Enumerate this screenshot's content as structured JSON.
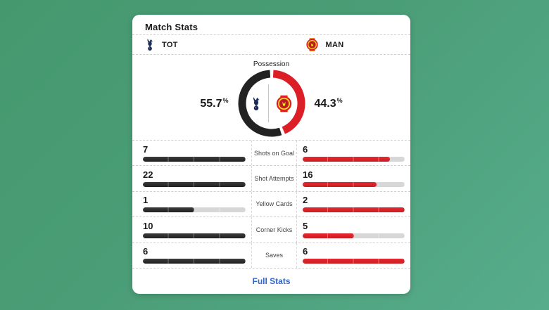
{
  "header": {
    "title": "Match Stats"
  },
  "teams": {
    "home": {
      "abbr": "TOT",
      "name": "Tottenham"
    },
    "away": {
      "abbr": "MAN",
      "name": "Manchester United"
    }
  },
  "possession": {
    "title": "Possession",
    "home_value": "55.7",
    "away_value": "44.3",
    "unit": "%"
  },
  "chart_data": [
    {
      "type": "pie",
      "title": "Possession",
      "legend_position": "inside-donut-team-crests",
      "series": [
        {
          "name": "TOT",
          "value": 55.7,
          "color": "#222222"
        },
        {
          "name": "MAN",
          "value": 44.3,
          "color": "#dc1f26"
        }
      ],
      "unit": "%"
    },
    {
      "type": "bar",
      "title": "Match Stats",
      "categories": [
        "Shots on Goal",
        "Shot Attempts",
        "Yellow Cards",
        "Corner Kicks",
        "Saves"
      ],
      "series": [
        {
          "name": "TOT",
          "values": [
            7,
            22,
            1,
            10,
            6
          ],
          "color": "#262626"
        },
        {
          "name": "MAN",
          "values": [
            6,
            16,
            2,
            5,
            6
          ],
          "color": "#dc1f26"
        }
      ],
      "note": "each bar scaled to max of the stat pair"
    }
  ],
  "stats": {
    "rows": [
      {
        "label": "Shots on Goal",
        "home": "7",
        "away": "6"
      },
      {
        "label": "Shot Attempts",
        "home": "22",
        "away": "16"
      },
      {
        "label": "Yellow Cards",
        "home": "1",
        "away": "2"
      },
      {
        "label": "Corner Kicks",
        "home": "10",
        "away": "5"
      },
      {
        "label": "Saves",
        "home": "6",
        "away": "6"
      }
    ]
  },
  "footer": {
    "link_label": "Full Stats"
  },
  "colors": {
    "home_bar": "#262626",
    "away_bar": "#dc1f26",
    "bar_track": "#d7d7d7",
    "donut_home": "#222222",
    "donut_away": "#dc1f26",
    "link": "#3366cc",
    "card_bg": "#ffffff",
    "page_bg_start": "#45986e",
    "page_bg_end": "#57ac8c"
  }
}
